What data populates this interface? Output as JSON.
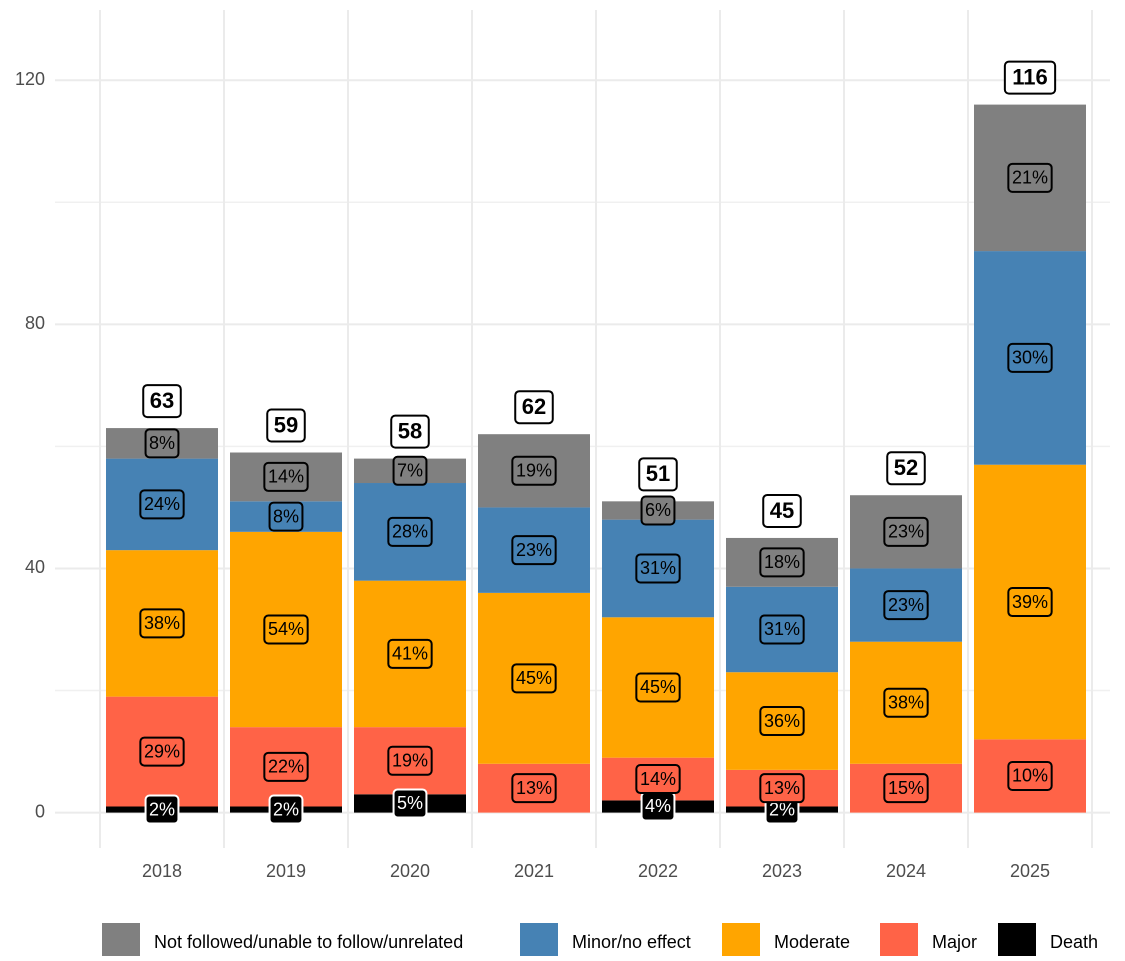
{
  "chart_data": {
    "type": "stacked_bar",
    "categories": [
      "2018",
      "2019",
      "2020",
      "2021",
      "2022",
      "2023",
      "2024",
      "2025"
    ],
    "series": [
      {
        "name": "Not followed/unable to follow/unrelated",
        "color": "#808080",
        "values": [
          5,
          8,
          4,
          12,
          3,
          8,
          12,
          24
        ],
        "percent_labels": [
          "8%",
          "14%",
          "7%",
          "19%",
          "6%",
          "18%",
          "23%",
          "21%"
        ]
      },
      {
        "name": "Minor/no effect",
        "color": "#4682b4",
        "values": [
          15,
          5,
          16,
          14,
          16,
          14,
          12,
          35
        ],
        "percent_labels": [
          "24%",
          "8%",
          "28%",
          "23%",
          "31%",
          "31%",
          "23%",
          "30%"
        ]
      },
      {
        "name": "Moderate",
        "color": "#ffa500",
        "values": [
          24,
          32,
          24,
          28,
          23,
          16,
          20,
          45
        ],
        "percent_labels": [
          "38%",
          "54%",
          "41%",
          "45%",
          "45%",
          "36%",
          "38%",
          "39%"
        ]
      },
      {
        "name": "Major",
        "color": "#ff6347",
        "values": [
          18,
          13,
          11,
          8,
          7,
          6,
          8,
          12
        ],
        "percent_labels": [
          "29%",
          "22%",
          "19%",
          "13%",
          "14%",
          "13%",
          "15%",
          "10%"
        ]
      },
      {
        "name": "Death",
        "color": "#000000",
        "values": [
          1,
          1,
          3,
          0,
          2,
          1,
          0,
          0
        ],
        "percent_labels": [
          "2%",
          "2%",
          "5%",
          null,
          "4%",
          "2%",
          null,
          null
        ]
      }
    ],
    "totals": [
      63,
      59,
      58,
      62,
      51,
      45,
      52,
      116
    ],
    "ylim": [
      -5.8,
      131.5
    ],
    "yticks": [
      0,
      40,
      80,
      120
    ],
    "grid": true,
    "legend": "bottom"
  }
}
